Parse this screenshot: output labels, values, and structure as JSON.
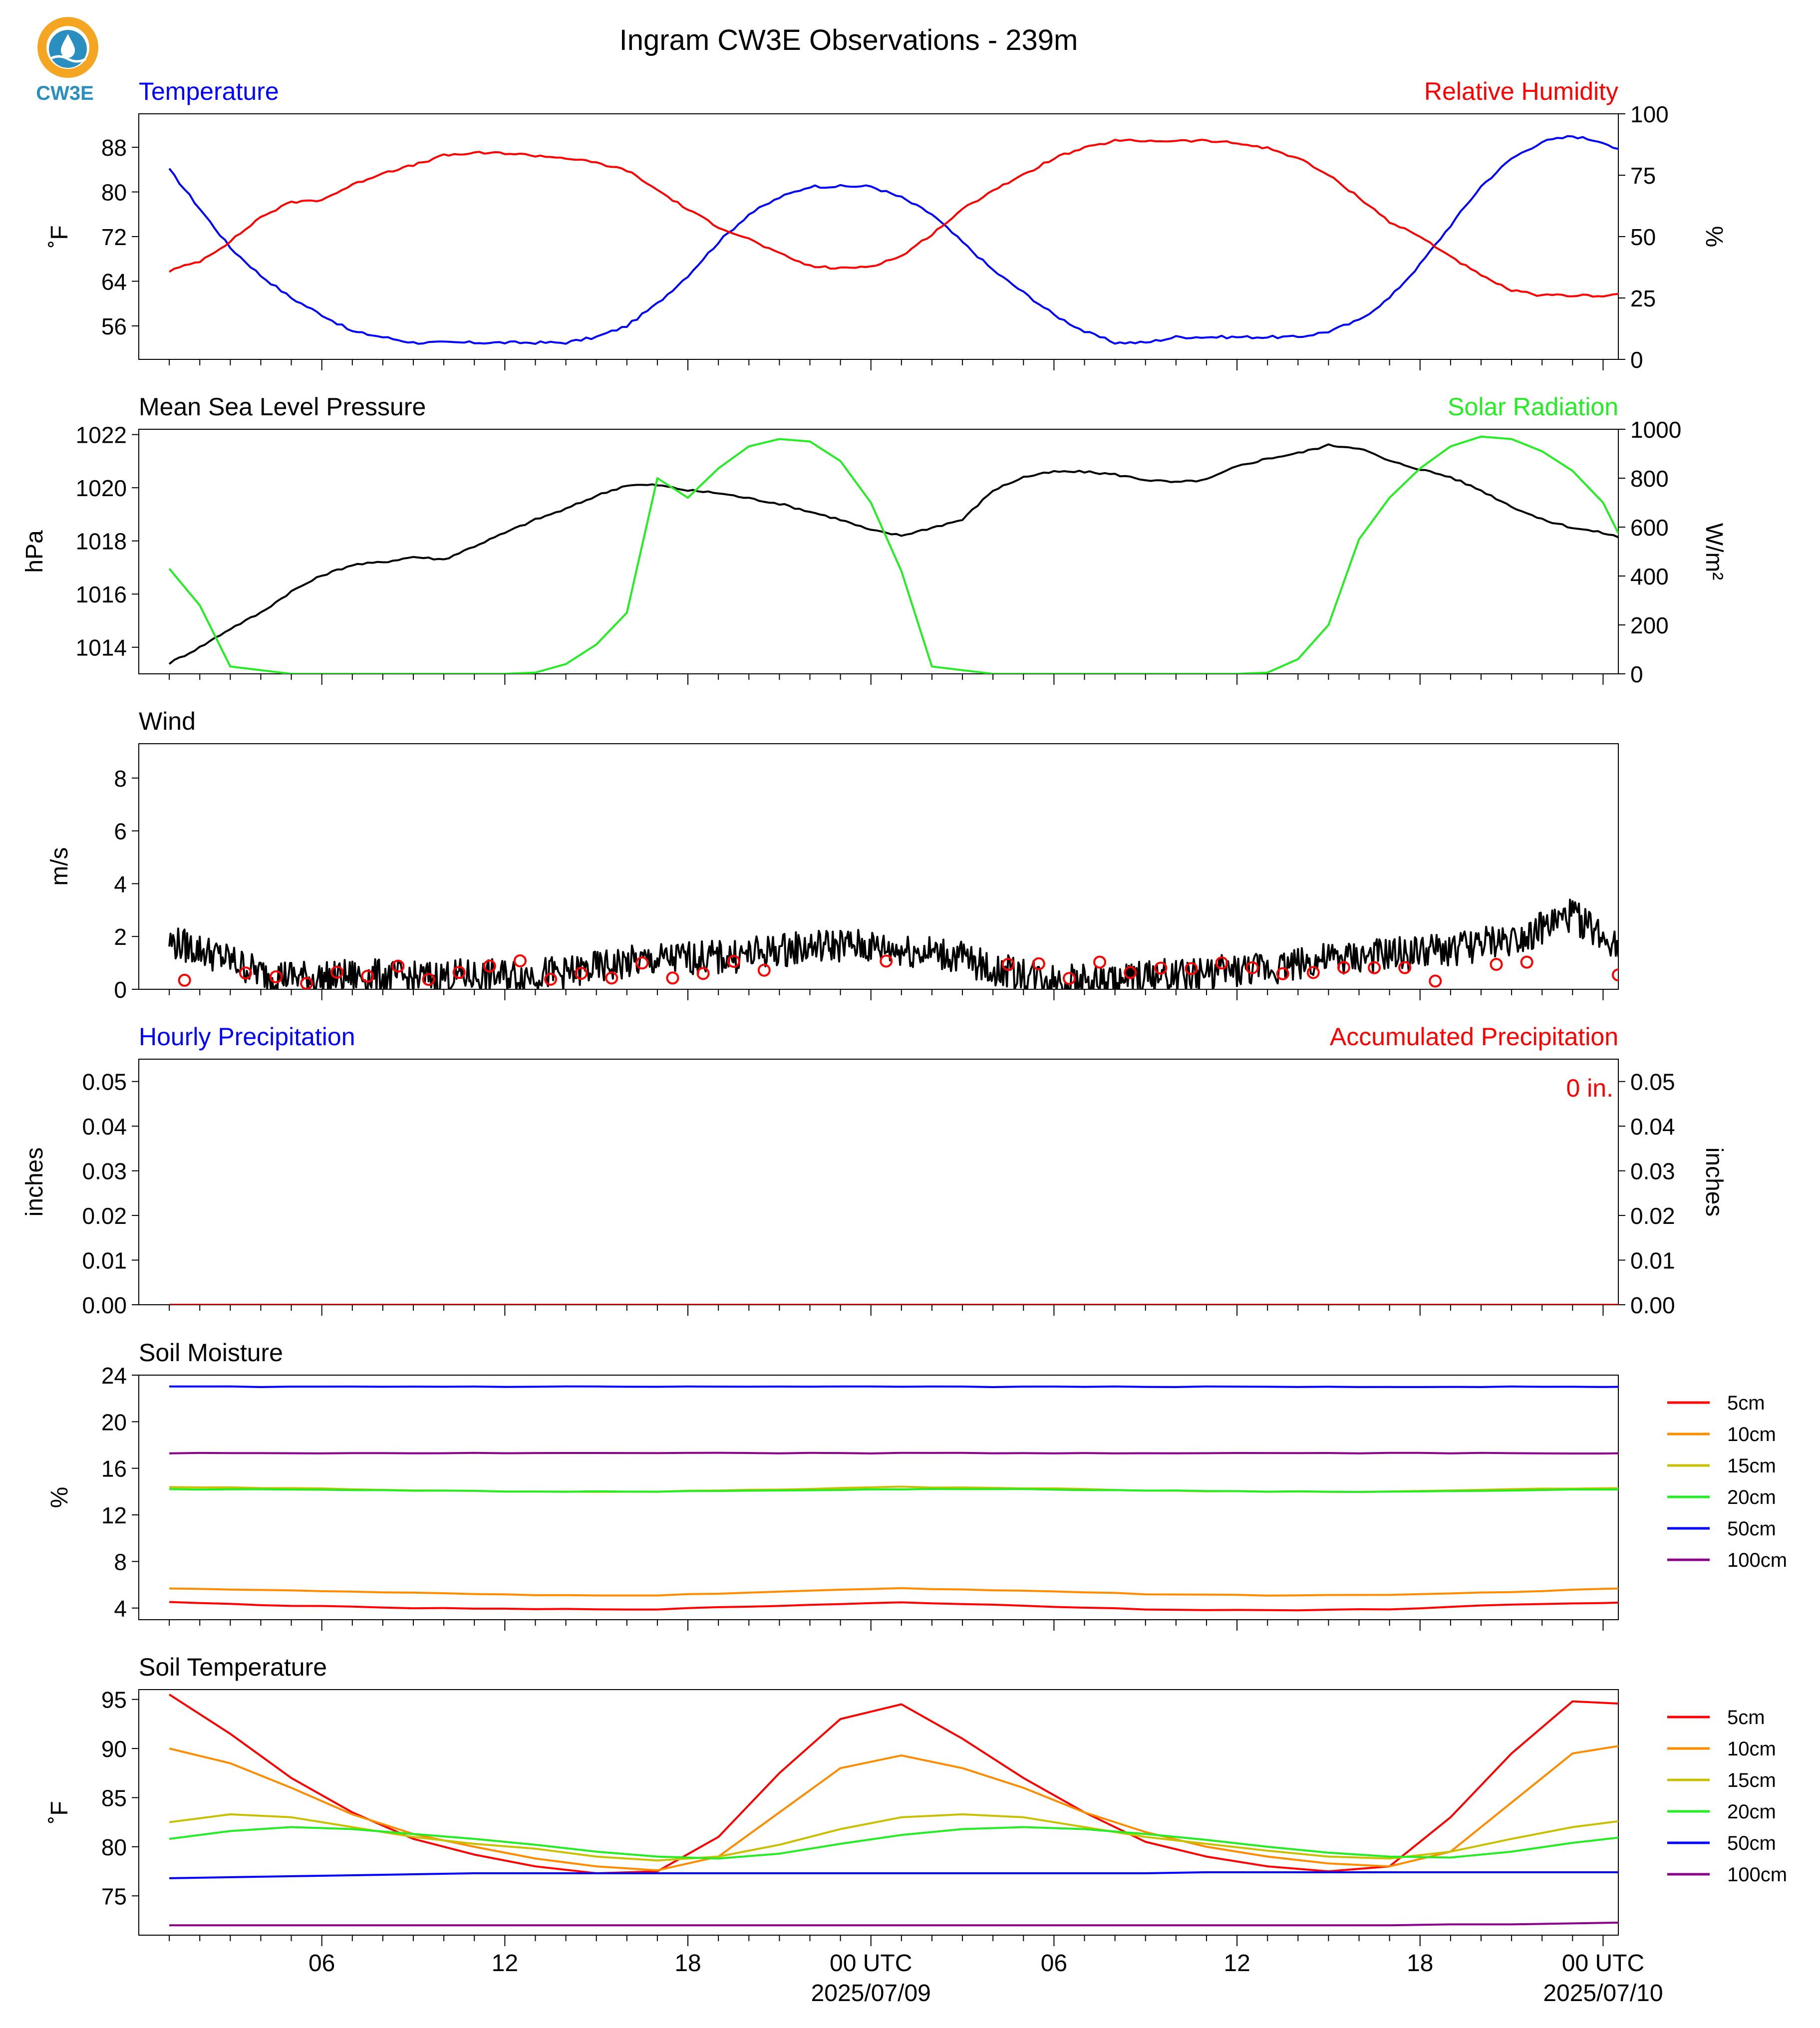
{
  "page": {
    "title": "Ingram CW3E Observations - 239m",
    "logo_text": "CW3E",
    "logo_colors": {
      "ring": "#f4a623",
      "drop": "#2a8fbf",
      "text": "#2a8fbf"
    }
  },
  "time_axis": {
    "tick_labels": [
      "06",
      "12",
      "18",
      "00 UTC",
      "06",
      "12",
      "18",
      "00 UTC"
    ],
    "date_labels": [
      "2025/07/09",
      "2025/07/10"
    ]
  },
  "colors": {
    "blue": "#0000ff",
    "red": "#ff0000",
    "green": "#22ee22",
    "black": "#000000",
    "orange": "#ff8c00",
    "olive": "#c8c000",
    "purple": "#8b008b"
  },
  "chart_data": [
    {
      "id": "temp_rh",
      "type": "line",
      "title_left": "Temperature",
      "title_right": "Relative Humidity",
      "ylabel_left": "˚F",
      "ylabel_right": "%",
      "ylim_left": [
        50,
        94
      ],
      "yticks_left": [
        "88",
        "80",
        "72",
        "64",
        "56"
      ],
      "ylim_right": [
        0,
        100
      ],
      "yticks_right": [
        "100",
        "75",
        "50",
        "25",
        "0"
      ],
      "x_hours": [
        1,
        2,
        3,
        4,
        5,
        6,
        7,
        8,
        9,
        10,
        11,
        12,
        13,
        14,
        15,
        16,
        17,
        18,
        19,
        20,
        21,
        22,
        23,
        24,
        25,
        26,
        27,
        28,
        29,
        30,
        31,
        32,
        33,
        34,
        35,
        36,
        37,
        38,
        39,
        40,
        41,
        42,
        43,
        44,
        45,
        46,
        47,
        48,
        49
      ],
      "series": [
        {
          "name": "Temperature",
          "axis": "left",
          "color": "#0000ff",
          "values": [
            84,
            77,
            70,
            65,
            61,
            58,
            55,
            54,
            53,
            53,
            53,
            53,
            53,
            53,
            54,
            56,
            60,
            65,
            71,
            76,
            79,
            81,
            81,
            81,
            79,
            76,
            71,
            66,
            62,
            58,
            55,
            53,
            53,
            54,
            54,
            54,
            54,
            54,
            55,
            57,
            61,
            67,
            74,
            81,
            86,
            89,
            90,
            89,
            86
          ]
        },
        {
          "name": "Relative Humidity",
          "axis": "right",
          "color": "#ff0000",
          "values": [
            36,
            40,
            48,
            58,
            64,
            65,
            71,
            76,
            79,
            83,
            84,
            84,
            83,
            82,
            80,
            77,
            69,
            61,
            54,
            49,
            43,
            38,
            37,
            38,
            42,
            51,
            61,
            69,
            75,
            82,
            86,
            89,
            89,
            89,
            89,
            88,
            86,
            82,
            75,
            66,
            56,
            50,
            42,
            34,
            28,
            26,
            26,
            26,
            27
          ]
        }
      ]
    },
    {
      "id": "mslp_solar",
      "type": "line",
      "title_left": "Mean Sea Level Pressure",
      "title_right": "Solar Radiation",
      "ylabel_left": "hPa",
      "ylabel_right": "W/m²",
      "ylim_left": [
        1013,
        1022.2
      ],
      "yticks_left": [
        "1022",
        "1020",
        "1018",
        "1016",
        "1014"
      ],
      "ylim_right": [
        0,
        1000
      ],
      "yticks_right": [
        "1000",
        "800",
        "600",
        "400",
        "200",
        "0"
      ],
      "x_hours": [
        1,
        2,
        3,
        4,
        5,
        6,
        7,
        8,
        9,
        10,
        11,
        12,
        13,
        14,
        15,
        16,
        17,
        18,
        19,
        20,
        21,
        22,
        23,
        24,
        25,
        26,
        27,
        28,
        29,
        30,
        31,
        32,
        33,
        34,
        35,
        36,
        37,
        38,
        39,
        40,
        41,
        42,
        43,
        44,
        45,
        46,
        47,
        48,
        49
      ],
      "series": [
        {
          "name": "Mean Sea Level Pressure",
          "axis": "left",
          "color": "#000000",
          "values": [
            1013.4,
            1014.0,
            1014.7,
            1015.3,
            1016.1,
            1016.7,
            1017.1,
            1017.2,
            1017.4,
            1017.3,
            1017.8,
            1018.3,
            1018.8,
            1019.2,
            1019.7,
            1020.1,
            1020.1,
            1019.9,
            1019.8,
            1019.6,
            1019.4,
            1019.1,
            1018.8,
            1018.4,
            1018.2,
            1018.5,
            1018.8,
            1019.9,
            1020.4,
            1020.6,
            1020.6,
            1020.5,
            1020.3,
            1020.2,
            1020.3,
            1020.8,
            1021.1,
            1021.3,
            1021.6,
            1021.5,
            1021.0,
            1020.7,
            1020.4,
            1019.9,
            1019.3,
            1018.8,
            1018.5,
            1018.3,
            1018.0
          ]
        },
        {
          "name": "Solar Radiation",
          "axis": "right",
          "color": "#22ee22",
          "values": [
            430,
            280,
            30,
            15,
            0,
            0,
            0,
            0,
            0,
            0,
            0,
            0,
            5,
            40,
            120,
            250,
            800,
            720,
            840,
            930,
            960,
            950,
            870,
            700,
            420,
            30,
            15,
            0,
            0,
            0,
            0,
            0,
            0,
            0,
            0,
            0,
            5,
            60,
            200,
            550,
            720,
            840,
            930,
            970,
            960,
            910,
            830,
            700,
            450
          ]
        }
      ]
    },
    {
      "id": "wind",
      "type": "line",
      "title_left": "Wind",
      "title_right": "",
      "ylabel_left": "m/s",
      "ylabel_right": "",
      "ylim_left": [
        0,
        9.3
      ],
      "yticks_left": [
        "8",
        "6",
        "4",
        "2",
        "0"
      ],
      "ylim_right": null,
      "yticks_right": [],
      "x_hours": [
        1,
        2,
        3,
        4,
        5,
        6,
        7,
        8,
        9,
        10,
        11,
        12,
        13,
        14,
        15,
        16,
        17,
        18,
        19,
        20,
        21,
        22,
        23,
        24,
        25,
        26,
        27,
        28,
        29,
        30,
        31,
        32,
        33,
        34,
        35,
        36,
        37,
        38,
        39,
        40,
        41,
        42,
        43,
        44,
        45,
        46,
        47,
        48,
        49
      ],
      "series": [
        {
          "name": "",
          "axis": "left",
          "color": "#000000",
          "values": [
            1.8,
            1.5,
            1.1,
            0.6,
            0.5,
            0.4,
            0.5,
            0.5,
            0.4,
            0.5,
            0.5,
            0.5,
            0.6,
            0.6,
            0.8,
            1.0,
            1.1,
            1.2,
            1.2,
            1.3,
            1.5,
            1.6,
            1.7,
            1.6,
            1.5,
            1.4,
            1.2,
            0.7,
            0.6,
            0.4,
            0.3,
            0.3,
            0.5,
            0.5,
            0.6,
            0.7,
            0.8,
            1.0,
            1.1,
            1.2,
            1.3,
            1.4,
            1.5,
            1.7,
            1.9,
            2.3,
            2.8,
            2.0,
            1.6
          ]
        }
      ],
      "barb_markers_hours": [
        1.5,
        3.5,
        4.5,
        5.5,
        6.5,
        7.5,
        8.5,
        9.5,
        10.5,
        11.5,
        12.5,
        13.5,
        14.5,
        15.5,
        16.5,
        17.5,
        18.5,
        19.5,
        20.5,
        24.5,
        28.5,
        29.5,
        30.5,
        31.5,
        32.5,
        33.5,
        34.5,
        35.5,
        36.5,
        37.5,
        38.5,
        39.5,
        40.5,
        41.5,
        42.5,
        44.5,
        45.5,
        48.5
      ],
      "barb_marker_color": "#ff0000"
    },
    {
      "id": "precip",
      "type": "line",
      "title_left": "Hourly Precipitation",
      "title_right": "Accumulated Precipitation",
      "ylabel_left": "inches",
      "ylabel_right": "inches",
      "ylim_left": [
        0,
        0.055
      ],
      "yticks_left": [
        "0.05",
        "0.04",
        "0.03",
        "0.02",
        "0.01",
        "0.00"
      ],
      "ylim_right": [
        0,
        0.055
      ],
      "yticks_right": [
        "0.05",
        "0.04",
        "0.03",
        "0.02",
        "0.01",
        "0.00"
      ],
      "annotation": "0 in.",
      "x_hours": [
        1,
        49
      ],
      "series": [
        {
          "name": "Hourly Precipitation",
          "axis": "left",
          "color": "#0000ff",
          "values": [
            0,
            0
          ]
        },
        {
          "name": "Accumulated Precipitation",
          "axis": "right",
          "color": "#ff0000",
          "values": [
            0,
            0
          ]
        }
      ]
    },
    {
      "id": "soil_moisture",
      "type": "line",
      "title_left": "Soil Moisture",
      "title_right": "",
      "ylabel_left": "%",
      "ylabel_right": "",
      "ylim_left": [
        3,
        24
      ],
      "yticks_left": [
        "24",
        "20",
        "16",
        "12",
        "8",
        "4"
      ],
      "ylim_right": null,
      "yticks_right": [],
      "legend": [
        "5cm",
        "10cm",
        "15cm",
        "20cm",
        "50cm",
        "100cm"
      ],
      "x_hours": [
        1,
        5,
        9,
        13,
        17,
        21,
        25,
        29,
        33,
        37,
        41,
        45,
        49
      ],
      "series": [
        {
          "name": "5cm",
          "axis": "left",
          "color": "#ff0000",
          "values": [
            4.5,
            4.2,
            4.0,
            3.9,
            3.9,
            4.2,
            4.5,
            4.2,
            3.9,
            3.8,
            3.9,
            4.3,
            4.5
          ]
        },
        {
          "name": "10cm",
          "axis": "left",
          "color": "#ff8c00",
          "values": [
            5.7,
            5.5,
            5.3,
            5.1,
            5.1,
            5.4,
            5.7,
            5.5,
            5.2,
            5.1,
            5.1,
            5.4,
            5.7
          ]
        },
        {
          "name": "15cm",
          "axis": "left",
          "color": "#c8c000",
          "values": [
            14.4,
            14.3,
            14.1,
            14.0,
            14.0,
            14.2,
            14.4,
            14.3,
            14.1,
            14.0,
            14.0,
            14.2,
            14.3
          ]
        },
        {
          "name": "20cm",
          "axis": "left",
          "color": "#22ee22",
          "values": [
            14.2,
            14.2,
            14.1,
            14.0,
            14.0,
            14.1,
            14.2,
            14.2,
            14.1,
            14.0,
            14.0,
            14.1,
            14.2
          ]
        },
        {
          "name": "50cm",
          "axis": "left",
          "color": "#0000ff",
          "values": [
            23.0,
            23.0,
            23.0,
            23.0,
            23.0,
            23.0,
            23.0,
            23.0,
            23.0,
            23.0,
            23.0,
            23.0,
            23.0
          ]
        },
        {
          "name": "100cm",
          "axis": "left",
          "color": "#8b008b",
          "values": [
            17.3,
            17.3,
            17.3,
            17.3,
            17.3,
            17.3,
            17.3,
            17.3,
            17.3,
            17.3,
            17.3,
            17.3,
            17.3
          ]
        }
      ]
    },
    {
      "id": "soil_temp",
      "type": "line",
      "title_left": "Soil Temperature",
      "title_right": "",
      "ylabel_left": "˚F",
      "ylabel_right": "",
      "ylim_left": [
        71,
        96
      ],
      "yticks_left": [
        "95",
        "90",
        "85",
        "80",
        "75"
      ],
      "ylim_right": null,
      "yticks_right": [],
      "legend": [
        "5cm",
        "10cm",
        "15cm",
        "20cm",
        "50cm",
        "100cm"
      ],
      "x_hours": [
        1,
        3,
        5,
        7,
        9,
        11,
        13,
        15,
        17,
        19,
        21,
        23,
        25,
        27,
        29,
        31,
        33,
        35,
        37,
        39,
        41,
        43,
        45,
        47,
        49
      ],
      "series": [
        {
          "name": "5cm",
          "axis": "left",
          "color": "#ff0000",
          "values": [
            95.5,
            91.5,
            87.0,
            83.5,
            80.8,
            79.2,
            78.0,
            77.3,
            77.5,
            81.0,
            87.5,
            93.0,
            94.5,
            91.0,
            87.0,
            83.5,
            80.5,
            79.0,
            78.0,
            77.5,
            78.0,
            83.0,
            89.5,
            94.8,
            94.5
          ]
        },
        {
          "name": "10cm",
          "axis": "left",
          "color": "#ff8c00",
          "values": [
            90.0,
            88.5,
            86.0,
            83.3,
            81.3,
            80.0,
            78.8,
            78.0,
            77.6,
            79.0,
            83.5,
            88.0,
            89.3,
            88.0,
            86.0,
            83.5,
            81.5,
            80.0,
            79.0,
            78.3,
            78.0,
            79.5,
            84.5,
            89.5,
            90.5
          ]
        },
        {
          "name": "15cm",
          "axis": "left",
          "color": "#c8c000",
          "values": [
            82.5,
            83.3,
            83.0,
            82.0,
            81.0,
            80.3,
            79.8,
            79.0,
            78.6,
            79.0,
            80.2,
            81.8,
            83.0,
            83.3,
            83.0,
            82.0,
            81.0,
            80.3,
            79.6,
            79.0,
            78.8,
            79.5,
            80.8,
            82.0,
            82.8
          ]
        },
        {
          "name": "20cm",
          "axis": "left",
          "color": "#22ee22",
          "values": [
            80.8,
            81.6,
            82.0,
            81.8,
            81.3,
            80.8,
            80.2,
            79.5,
            79.0,
            78.8,
            79.3,
            80.3,
            81.2,
            81.8,
            82.0,
            81.8,
            81.3,
            80.7,
            80.0,
            79.4,
            79.0,
            78.9,
            79.5,
            80.4,
            81.1
          ]
        },
        {
          "name": "50cm",
          "axis": "left",
          "color": "#0000ff",
          "values": [
            76.8,
            76.9,
            77.0,
            77.1,
            77.2,
            77.3,
            77.3,
            77.3,
            77.3,
            77.3,
            77.3,
            77.3,
            77.3,
            77.3,
            77.3,
            77.3,
            77.3,
            77.4,
            77.4,
            77.4,
            77.4,
            77.4,
            77.4,
            77.4,
            77.4
          ]
        },
        {
          "name": "100cm",
          "axis": "left",
          "color": "#8b008b",
          "values": [
            72.0,
            72.0,
            72.0,
            72.0,
            72.0,
            72.0,
            72.0,
            72.0,
            72.0,
            72.0,
            72.0,
            72.0,
            72.0,
            72.0,
            72.0,
            72.0,
            72.0,
            72.0,
            72.0,
            72.0,
            72.0,
            72.1,
            72.1,
            72.2,
            72.3
          ]
        }
      ]
    }
  ]
}
